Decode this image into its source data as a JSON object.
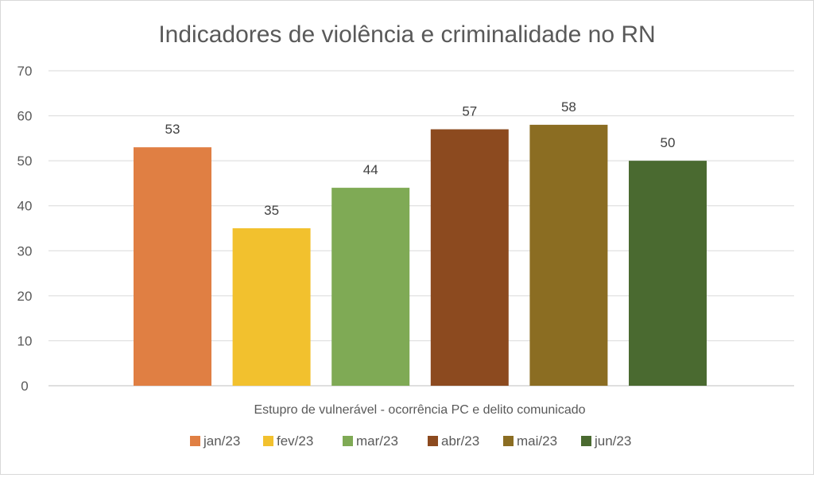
{
  "chart_data": {
    "type": "bar",
    "title": "Indicadores de violência e criminalidade no RN",
    "categories": [
      "Estupro de vulnerável - ocorrência PC e delito comunicado"
    ],
    "series": [
      {
        "name": "jan/23",
        "values": [
          53
        ],
        "color": "#e07f43"
      },
      {
        "name": "fev/23",
        "values": [
          35
        ],
        "color": "#f2c12e"
      },
      {
        "name": "mar/23",
        "values": [
          44
        ],
        "color": "#7faa55"
      },
      {
        "name": "abr/23",
        "values": [
          57
        ],
        "color": "#8c4a1f"
      },
      {
        "name": "mai/23",
        "values": [
          58
        ],
        "color": "#8b6d22"
      },
      {
        "name": "jun/23",
        "values": [
          50
        ],
        "color": "#4a6a30"
      }
    ],
    "xlabel": "",
    "ylabel": "",
    "ylim": [
      0,
      70
    ],
    "yticks": [
      "0",
      "10",
      "20",
      "30",
      "40",
      "50",
      "60",
      "70"
    ],
    "grid": true,
    "data_labels": true,
    "legend_position": "bottom"
  }
}
